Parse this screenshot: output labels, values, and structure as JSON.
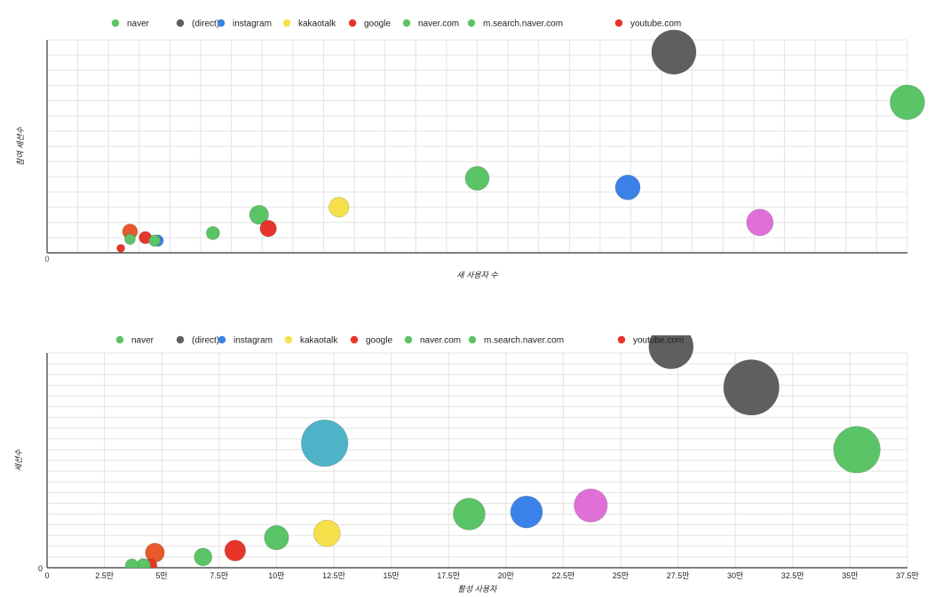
{
  "chart_data": [
    {
      "type": "bubble",
      "legend": [
        {
          "name": "naver",
          "color": "#5bc466"
        },
        {
          "name": "(direct)",
          "color": "#5f5f5f"
        },
        {
          "name": "instagram",
          "color": "#3b82e8"
        },
        {
          "name": "kakaotalk",
          "color": "#f6e04a"
        },
        {
          "name": "google",
          "color": "#e8352b"
        },
        {
          "name": "naver.com",
          "color": "#5bc466"
        },
        {
          "name": "m.search.naver.com",
          "color": "#5bc466"
        },
        {
          "name": "youtube.com",
          "color": "#e8352b"
        }
      ],
      "xlabel": "새 사용자 수",
      "ylabel": "참여 세션수",
      "xlim": [
        0,
        28
      ],
      "ylim": [
        0,
        14
      ],
      "x_tick_values": [
        2,
        4,
        6,
        8,
        10,
        12,
        14,
        16,
        18,
        20,
        22,
        24,
        26,
        28
      ],
      "x_ticks": [
        "",
        "",
        "",
        "",
        "",
        "",
        "",
        "",
        "",
        "",
        "",
        "",
        "",
        ""
      ],
      "y_tick_values": [
        1,
        2,
        3,
        4,
        5,
        6,
        7,
        8,
        9,
        10,
        11,
        12,
        13,
        14
      ],
      "y_ticks": [
        "",
        "",
        "",
        "",
        "",
        "",
        "",
        "",
        "",
        "",
        "",
        "",
        "",
        ""
      ],
      "x_origin_label": "0",
      "bubbles": [
        {
          "x": 20.4,
          "y": 13.2,
          "r": 1.0,
          "color": "#5f5f5f"
        },
        {
          "x": 28.0,
          "y": 9.9,
          "r": 0.78,
          "color": "#5bc466"
        },
        {
          "x": 14.0,
          "y": 4.9,
          "r": 0.54,
          "color": "#5bc466"
        },
        {
          "x": 18.9,
          "y": 4.3,
          "r": 0.56,
          "color": "#3b82e8"
        },
        {
          "x": 23.2,
          "y": 2.0,
          "r": 0.6,
          "color": "#e070d8"
        },
        {
          "x": 9.5,
          "y": 3.0,
          "r": 0.45,
          "color": "#f6e04a"
        },
        {
          "x": 6.9,
          "y": 2.5,
          "r": 0.43,
          "color": "#5bc466"
        },
        {
          "x": 7.2,
          "y": 1.6,
          "r": 0.37,
          "color": "#e8352b"
        },
        {
          "x": 5.4,
          "y": 1.3,
          "r": 0.3,
          "color": "#5bc466"
        },
        {
          "x": 3.2,
          "y": 1.0,
          "r": 0.28,
          "color": "#e8352b"
        },
        {
          "x": 3.6,
          "y": 0.8,
          "r": 0.26,
          "color": "#3b82e8"
        },
        {
          "x": 3.5,
          "y": 0.8,
          "r": 0.26,
          "color": "#5bc466"
        },
        {
          "x": 2.7,
          "y": 1.4,
          "r": 0.34,
          "color": "#e85a2b"
        },
        {
          "x": 2.7,
          "y": 0.9,
          "r": 0.24,
          "color": "#5bc466"
        },
        {
          "x": 2.4,
          "y": 0.3,
          "r": 0.18,
          "color": "#e8352b"
        }
      ]
    },
    {
      "type": "bubble",
      "legend": [
        {
          "name": "naver",
          "color": "#5bc466"
        },
        {
          "name": "(direct)",
          "color": "#5f5f5f"
        },
        {
          "name": "instagram",
          "color": "#3b82e8"
        },
        {
          "name": "kakaotalk",
          "color": "#f6e04a"
        },
        {
          "name": "google",
          "color": "#e8352b"
        },
        {
          "name": "naver.com",
          "color": "#5bc466"
        },
        {
          "name": "m.search.naver.com",
          "color": "#5bc466"
        },
        {
          "name": "youtube.com",
          "color": "#e8352b"
        }
      ],
      "xlabel": "활성 사용자",
      "ylabel": "세션수",
      "xlim": [
        0,
        37.5
      ],
      "ylim": [
        0,
        10
      ],
      "x_tick_values": [
        0,
        2.5,
        5,
        7.5,
        10,
        12.5,
        15,
        17.5,
        20,
        22.5,
        25,
        27.5,
        30,
        32.5,
        35,
        37.5
      ],
      "x_ticks": [
        "0",
        "2.5만",
        "5만",
        "7.5만",
        "10만",
        "12.5만",
        "15만",
        "17.5만",
        "20만",
        "22.5만",
        "25만",
        "27.5만",
        "30만",
        "32.5만",
        "35만",
        "37.5만"
      ],
      "y_tick_values": [
        1,
        2,
        3,
        4,
        5,
        6,
        7,
        8,
        9,
        10
      ],
      "y_ticks": [
        "",
        "",
        "",
        "",
        "",
        "",
        "",
        "",
        "",
        ""
      ],
      "y_origin_label": "0",
      "bubbles": [
        {
          "x": 27.2,
          "y": 10.3,
          "r": 1.0,
          "color": "#5f5f5f"
        },
        {
          "x": 30.7,
          "y": 8.4,
          "r": 1.25,
          "color": "#5f5f5f"
        },
        {
          "x": 35.3,
          "y": 5.5,
          "r": 1.05,
          "color": "#5bc466"
        },
        {
          "x": 12.1,
          "y": 5.8,
          "r": 1.05,
          "color": "#4fb3c8"
        },
        {
          "x": 18.4,
          "y": 2.5,
          "r": 0.72,
          "color": "#5bc466"
        },
        {
          "x": 20.9,
          "y": 2.6,
          "r": 0.72,
          "color": "#3b82e8"
        },
        {
          "x": 23.7,
          "y": 2.9,
          "r": 0.75,
          "color": "#e070d8"
        },
        {
          "x": 12.2,
          "y": 1.6,
          "r": 0.6,
          "color": "#f6e04a"
        },
        {
          "x": 10.0,
          "y": 1.4,
          "r": 0.55,
          "color": "#5bc466"
        },
        {
          "x": 8.2,
          "y": 0.8,
          "r": 0.47,
          "color": "#e8352b"
        },
        {
          "x": 6.8,
          "y": 0.5,
          "r": 0.4,
          "color": "#5bc466"
        },
        {
          "x": 4.7,
          "y": 0.7,
          "r": 0.43,
          "color": "#e85a2b"
        },
        {
          "x": 4.5,
          "y": 0.1,
          "r": 0.3,
          "color": "#e8352b"
        },
        {
          "x": 4.2,
          "y": 0.1,
          "r": 0.32,
          "color": "#5bc466"
        },
        {
          "x": 3.7,
          "y": 0.1,
          "r": 0.3,
          "color": "#5bc466"
        }
      ]
    }
  ]
}
